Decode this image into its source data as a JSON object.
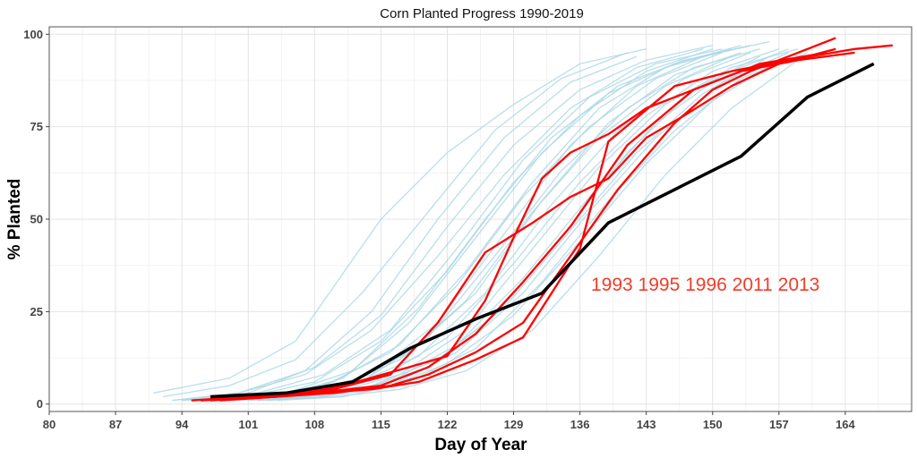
{
  "chart_data": {
    "type": "line",
    "title": "Corn Planted Progress 1990-2019",
    "xlabel": "Day of Year",
    "ylabel": "% Planted",
    "xlim": [
      80,
      171
    ],
    "ylim": [
      -2,
      102
    ],
    "x_ticks": [
      80,
      87,
      94,
      101,
      108,
      115,
      122,
      129,
      136,
      143,
      150,
      157,
      164
    ],
    "y_ticks": [
      0,
      25,
      50,
      75,
      100
    ],
    "grid": true,
    "annotation": "1993 1995 1996 2011 2013",
    "colors": {
      "background_years": "#add8e6",
      "highlight_years": "#ff0000",
      "current_year": "#000000"
    },
    "background_series": [
      {
        "x": [
          91,
          99,
          106,
          115,
          122,
          129,
          136,
          143
        ],
        "values": [
          3,
          7,
          17,
          50,
          68,
          81,
          92,
          96
        ]
      },
      {
        "x": [
          92,
          99,
          106,
          113,
          120,
          127,
          134,
          141
        ],
        "values": [
          2,
          5,
          12,
          30,
          52,
          74,
          88,
          95
        ]
      },
      {
        "x": [
          93,
          100,
          107,
          114,
          121,
          128,
          135,
          142
        ],
        "values": [
          1,
          3,
          9,
          25,
          50,
          72,
          87,
          94
        ]
      },
      {
        "x": [
          93,
          100,
          107,
          114,
          121,
          128,
          135,
          142,
          149
        ],
        "values": [
          1,
          3,
          8,
          20,
          40,
          62,
          80,
          91,
          96
        ]
      },
      {
        "x": [
          94,
          101,
          108,
          115,
          122,
          129,
          136,
          143,
          150
        ],
        "values": [
          1,
          2,
          6,
          17,
          36,
          60,
          78,
          90,
          96
        ]
      },
      {
        "x": [
          94,
          101,
          108,
          115,
          122,
          129,
          136,
          143,
          150
        ],
        "values": [
          1,
          3,
          10,
          24,
          48,
          70,
          85,
          93,
          97
        ]
      },
      {
        "x": [
          95,
          102,
          109,
          116,
          123,
          130,
          137,
          144,
          151
        ],
        "values": [
          1,
          2,
          5,
          14,
          32,
          56,
          75,
          88,
          95
        ]
      },
      {
        "x": [
          95,
          102,
          109,
          116,
          123,
          130,
          137,
          144,
          151
        ],
        "values": [
          1,
          3,
          8,
          20,
          42,
          66,
          83,
          92,
          96
        ]
      },
      {
        "x": [
          96,
          103,
          110,
          117,
          124,
          131,
          138,
          145,
          152
        ],
        "values": [
          1,
          2,
          6,
          16,
          36,
          60,
          80,
          91,
          96
        ]
      },
      {
        "x": [
          96,
          103,
          110,
          117,
          124,
          131,
          138,
          145,
          152
        ],
        "values": [
          1,
          2,
          4,
          12,
          28,
          52,
          72,
          86,
          94
        ]
      },
      {
        "x": [
          97,
          104,
          111,
          118,
          125,
          132,
          139,
          146,
          153
        ],
        "values": [
          1,
          2,
          5,
          14,
          30,
          55,
          76,
          89,
          95
        ]
      },
      {
        "x": [
          97,
          104,
          111,
          118,
          125,
          132,
          139,
          146,
          153
        ],
        "values": [
          1,
          2,
          7,
          22,
          45,
          68,
          84,
          92,
          97
        ]
      },
      {
        "x": [
          98,
          105,
          112,
          119,
          126,
          133,
          140,
          147,
          154
        ],
        "values": [
          1,
          3,
          9,
          26,
          50,
          72,
          86,
          93,
          97
        ]
      },
      {
        "x": [
          98,
          105,
          112,
          119,
          126,
          133,
          140,
          147,
          154
        ],
        "values": [
          1,
          2,
          5,
          13,
          30,
          54,
          74,
          88,
          95
        ]
      },
      {
        "x": [
          99,
          106,
          113,
          120,
          127,
          134,
          141,
          148,
          155
        ],
        "values": [
          1,
          2,
          4,
          10,
          24,
          45,
          68,
          85,
          94
        ]
      },
      {
        "x": [
          99,
          106,
          113,
          120,
          127,
          134,
          141,
          148,
          155
        ],
        "values": [
          1,
          2,
          6,
          18,
          40,
          63,
          80,
          91,
          96
        ]
      },
      {
        "x": [
          100,
          107,
          114,
          121,
          128,
          135,
          142,
          149,
          156
        ],
        "values": [
          1,
          2,
          5,
          12,
          26,
          47,
          68,
          84,
          94
        ]
      },
      {
        "x": [
          100,
          107,
          114,
          121,
          128,
          135,
          142,
          149,
          156
        ],
        "values": [
          1,
          3,
          8,
          22,
          46,
          70,
          86,
          94,
          98
        ]
      },
      {
        "x": [
          101,
          108,
          115,
          122,
          129,
          136,
          143,
          150,
          157
        ],
        "values": [
          1,
          2,
          4,
          11,
          24,
          44,
          65,
          82,
          93
        ]
      },
      {
        "x": [
          101,
          108,
          115,
          122,
          129,
          136,
          143,
          150,
          157
        ],
        "values": [
          1,
          3,
          7,
          18,
          38,
          60,
          78,
          90,
          96
        ]
      },
      {
        "x": [
          102,
          109,
          116,
          123,
          130,
          137,
          144,
          151,
          158
        ],
        "values": [
          1,
          2,
          6,
          16,
          34,
          56,
          76,
          89,
          96
        ]
      },
      {
        "x": [
          102,
          109,
          116,
          123,
          130,
          137,
          144,
          151,
          158
        ],
        "values": [
          1,
          2,
          5,
          14,
          30,
          52,
          72,
          87,
          95
        ]
      },
      {
        "x": [
          103,
          110,
          117,
          124,
          131,
          138,
          145,
          152,
          159
        ],
        "values": [
          1,
          3,
          8,
          20,
          42,
          64,
          81,
          91,
          96
        ]
      },
      {
        "x": [
          103,
          110,
          117,
          124,
          131,
          138,
          145,
          152,
          159
        ],
        "values": [
          1,
          2,
          4,
          9,
          20,
          40,
          62,
          80,
          93
        ]
      },
      {
        "x": [
          104,
          111,
          118,
          125,
          132,
          139,
          146,
          153,
          160
        ],
        "values": [
          1,
          2,
          6,
          15,
          33,
          55,
          74,
          88,
          95
        ]
      }
    ],
    "highlight_series": [
      {
        "x": [
          95,
          101,
          108,
          115,
          120,
          125,
          130,
          135,
          141,
          148,
          155,
          162
        ],
        "values": [
          1,
          2,
          3,
          5,
          10,
          19,
          33,
          48,
          70,
          85,
          92,
          95
        ]
      },
      {
        "x": [
          96,
          103,
          110,
          116,
          121,
          126,
          131,
          135,
          139,
          143,
          147,
          152,
          157,
          163
        ],
        "values": [
          1,
          2,
          4,
          8,
          22,
          41,
          49,
          56,
          61,
          72,
          78,
          86,
          92,
          96
        ]
      },
      {
        "x": [
          97,
          104,
          111,
          118,
          122,
          126,
          129,
          132,
          135,
          139,
          143,
          148,
          153,
          159,
          165
        ],
        "values": [
          1,
          2,
          5,
          10,
          13,
          28,
          45,
          61,
          68,
          73,
          80,
          85,
          90,
          93,
          95
        ]
      },
      {
        "x": [
          96,
          102,
          108,
          114,
          119,
          125,
          130,
          133,
          136,
          139,
          146,
          152,
          158,
          165,
          169
        ],
        "values": [
          1,
          2,
          3,
          4,
          6,
          12,
          18,
          30,
          42,
          71,
          86,
          90,
          93,
          96,
          97
        ]
      },
      {
        "x": [
          98,
          104,
          110,
          116,
          120,
          125,
          130,
          135,
          140,
          146,
          150,
          154,
          158,
          163
        ],
        "values": [
          1,
          2,
          3,
          5,
          8,
          14,
          22,
          40,
          58,
          76,
          85,
          90,
          94,
          99
        ]
      }
    ],
    "current_series": {
      "x": [
        97,
        105,
        112,
        118,
        125,
        132,
        139,
        146,
        153,
        160,
        167
      ],
      "values": [
        2,
        3,
        6,
        15,
        23,
        30,
        49,
        58,
        67,
        83,
        92
      ]
    }
  }
}
